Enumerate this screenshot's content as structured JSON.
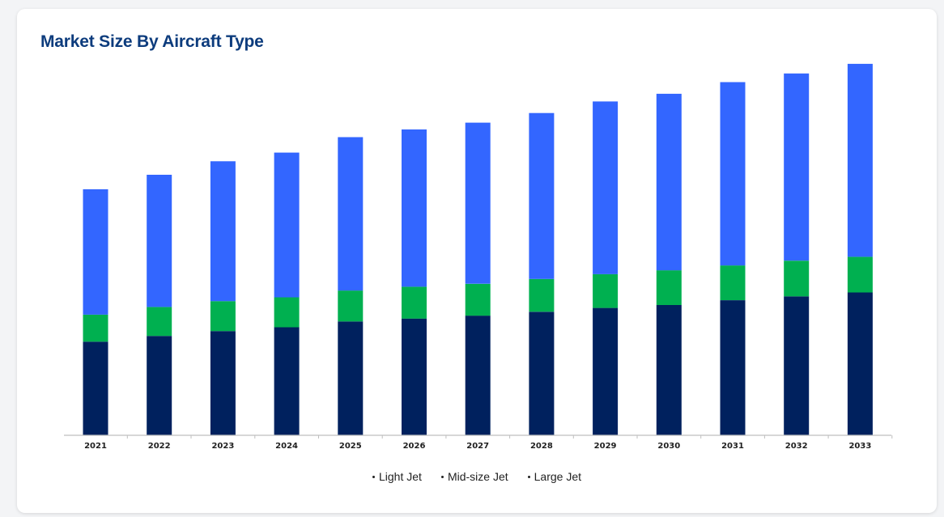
{
  "card": {
    "title": "Market Size By Aircraft Type"
  },
  "colors": {
    "light_jet": "#00215e",
    "mid_size_jet": "#00b050",
    "large_jet": "#3366ff",
    "axis": "#bfbfbf",
    "title": "#0d3c7d"
  },
  "chart_data": {
    "type": "bar",
    "stacked": true,
    "title": "Market Size By Aircraft Type",
    "xlabel": "",
    "ylabel": "",
    "y_axis_visible": false,
    "grid": false,
    "legend_position": "bottom-center",
    "categories": [
      "2021",
      "2022",
      "2023",
      "2024",
      "2025",
      "2026",
      "2027",
      "2028",
      "2029",
      "2030",
      "2031",
      "2032",
      "2033"
    ],
    "ylim": [
      0,
      400
    ],
    "series": [
      {
        "name": "Light Jet",
        "color": "#00215e",
        "values": [
          97,
          103,
          108,
          112,
          118,
          121,
          124,
          128,
          132,
          135,
          140,
          144,
          148
        ]
      },
      {
        "name": "Mid-size Jet",
        "color": "#00b050",
        "values": [
          28,
          30,
          31,
          31,
          32,
          33,
          33,
          34,
          35,
          36,
          36,
          37,
          37
        ]
      },
      {
        "name": "Large Jet",
        "color": "#3366ff",
        "values": [
          130,
          137,
          145,
          150,
          159,
          163,
          167,
          172,
          179,
          183,
          190,
          194,
          200
        ]
      }
    ]
  },
  "legend": {
    "items": [
      "Light Jet",
      "Mid-size Jet",
      "Large Jet"
    ]
  }
}
